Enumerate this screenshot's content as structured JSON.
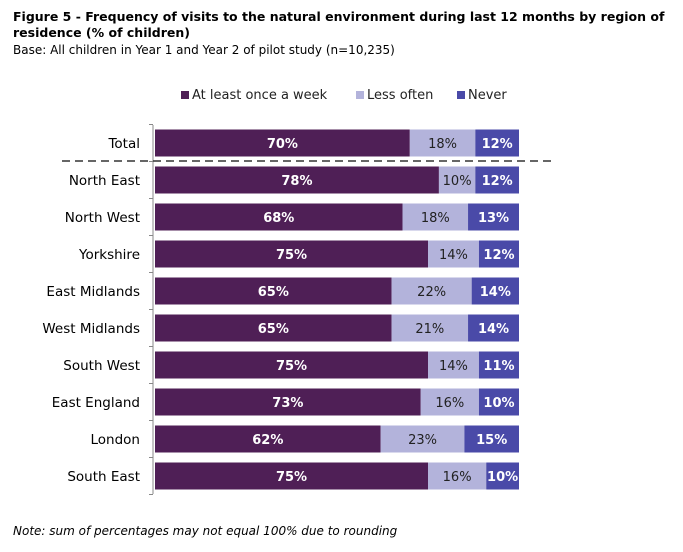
{
  "figure": {
    "title": "Figure 5 - Frequency of visits to the natural environment during last 12 months by region of residence (% of children)",
    "base": "Base: All children in Year 1 and Year 2 of pilot study (n=10,235)",
    "note": "Note: sum of percentages may not equal 100% due to rounding"
  },
  "chart_data": {
    "type": "bar",
    "orientation": "horizontal",
    "stacked": true,
    "legend_position": "top",
    "grid": false,
    "xlim": [
      0,
      100
    ],
    "title": "Figure 5 - Frequency of visits to the natural environment during last 12 months by region of residence (% of children)",
    "categories": [
      "Total",
      "North East",
      "North West",
      "Yorkshire",
      "East Midlands",
      "West Midlands",
      "South West",
      "East England",
      "London",
      "South East"
    ],
    "series": [
      {
        "name": "At least once a week",
        "color": "#4f1f56",
        "label_color": "#ffffff",
        "values": [
          70,
          78,
          68,
          75,
          65,
          65,
          75,
          73,
          62,
          75
        ],
        "labels": [
          "70%",
          "78%",
          "68%",
          "75%",
          "65%",
          "65%",
          "75%",
          "73%",
          "62%",
          "75%"
        ]
      },
      {
        "name": "Less often",
        "color": "#b3b3db",
        "label_color": "#222222",
        "values": [
          18,
          10,
          18,
          14,
          22,
          21,
          14,
          16,
          23,
          16
        ],
        "labels": [
          "18%",
          "10%",
          "18%",
          "14%",
          "22%",
          "21%",
          "14%",
          "16%",
          "23%",
          "16%"
        ]
      },
      {
        "name": "Never",
        "color": "#4a4aa8",
        "label_color": "#ffffff",
        "values": [
          12,
          12,
          13,
          12,
          14,
          14,
          11,
          10,
          15,
          10
        ],
        "labels": [
          "12%",
          "12%",
          "13%",
          "12%",
          "14%",
          "14%",
          "11%",
          "10%",
          "15%",
          "10%"
        ]
      }
    ]
  }
}
